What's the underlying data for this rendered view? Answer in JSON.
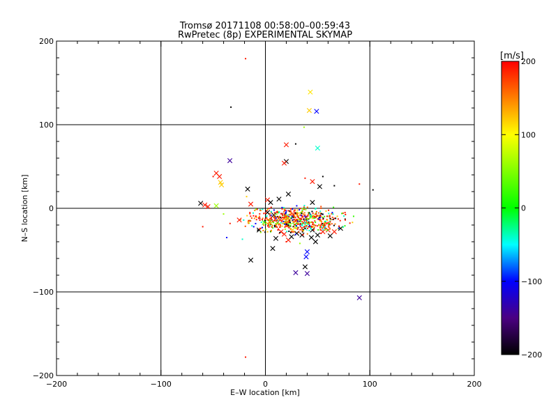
{
  "chart_data": {
    "type": "scatter",
    "title": "Tromsø 20171108 00:58:00–00:59:43",
    "subtitle": "RwPretec (8p) EXPERIMENTAL SKYMAP",
    "xlabel": "E–W location [km]",
    "ylabel": "N–S location [km]",
    "xlim": [
      -200,
      200
    ],
    "ylim": [
      -200,
      200
    ],
    "xticks": [
      "−200",
      "−100",
      "0",
      "100",
      "200"
    ],
    "yticks": [
      "−200",
      "−100",
      "0",
      "100",
      "200"
    ],
    "xtick_values": [
      -200,
      -100,
      0,
      100,
      200
    ],
    "ytick_values": [
      -200,
      -100,
      0,
      100,
      200
    ],
    "grid": true,
    "colorbar": {
      "unit": "[m/s]",
      "range": [
        -200,
        200
      ],
      "tick_labels": [
        "200",
        "100",
        "0",
        "−100",
        "−200"
      ],
      "tick_values": [
        200,
        100,
        0,
        -100,
        -200
      ]
    },
    "series": [
      {
        "name": "x-markers",
        "marker": "x",
        "points": [
          [
            43,
            139,
            110
          ],
          [
            42,
            117,
            120
          ],
          [
            49,
            116,
            -100
          ],
          [
            50,
            72,
            -40
          ],
          [
            20,
            76,
            190
          ],
          [
            20,
            56,
            -200
          ],
          [
            18,
            54,
            190
          ],
          [
            -34,
            57,
            -140
          ],
          [
            -47,
            42,
            190
          ],
          [
            -44,
            38,
            190
          ],
          [
            -43,
            31,
            120
          ],
          [
            -42,
            28,
            120
          ],
          [
            -17,
            23,
            -200
          ],
          [
            -62,
            6,
            -200
          ],
          [
            -58,
            4,
            190
          ],
          [
            -55,
            2,
            190
          ],
          [
            -47,
            3,
            60
          ],
          [
            -14,
            5,
            190
          ],
          [
            2,
            10,
            190
          ],
          [
            5,
            7,
            -200
          ],
          [
            13,
            11,
            -200
          ],
          [
            45,
            7,
            -200
          ],
          [
            52,
            26,
            -200
          ],
          [
            45,
            32,
            190
          ],
          [
            22,
            17,
            -200
          ],
          [
            -25,
            -14,
            190
          ],
          [
            -6,
            -26,
            -200
          ],
          [
            7,
            -48,
            -200
          ],
          [
            -14,
            -62,
            -200
          ],
          [
            40,
            -52,
            -100
          ],
          [
            39,
            -58,
            -100
          ],
          [
            38,
            -70,
            -200
          ],
          [
            29,
            -77,
            -140
          ],
          [
            40,
            -78,
            -140
          ],
          [
            90,
            -107,
            -140
          ],
          [
            18,
            -31,
            190
          ],
          [
            22,
            -38,
            190
          ],
          [
            56,
            -22,
            190
          ],
          [
            60,
            -26,
            190
          ],
          [
            66,
            -28,
            190
          ],
          [
            72,
            -24,
            -200
          ],
          [
            62,
            -33,
            -200
          ],
          [
            50,
            -32,
            -200
          ],
          [
            55,
            -28,
            190
          ],
          [
            28,
            -20,
            20
          ],
          [
            30,
            -30,
            -200
          ],
          [
            35,
            -32,
            -200
          ],
          [
            44,
            -35,
            -200
          ],
          [
            48,
            -40,
            -200
          ],
          [
            38,
            -24,
            -40
          ],
          [
            20,
            -10,
            190
          ],
          [
            14,
            -14,
            190
          ],
          [
            2,
            -5,
            -200
          ],
          [
            8,
            -8,
            -200
          ],
          [
            26,
            -26,
            120
          ],
          [
            -1,
            -17,
            20
          ],
          [
            5,
            -18,
            60
          ],
          [
            35,
            -20,
            -40
          ],
          [
            45,
            -26,
            -200
          ],
          [
            15,
            -28,
            190
          ],
          [
            25,
            -34,
            -200
          ],
          [
            10,
            -36,
            -200
          ]
        ]
      },
      {
        "name": "dot-markers",
        "marker": "dot",
        "points": [
          [
            -33,
            121,
            -200
          ],
          [
            29,
            77,
            -200
          ],
          [
            37,
            97,
            60
          ],
          [
            38,
            36,
            190
          ],
          [
            55,
            38,
            -200
          ],
          [
            66,
            27,
            -200
          ],
          [
            90,
            29,
            190
          ],
          [
            103,
            22,
            -200
          ],
          [
            -50,
            38,
            190
          ],
          [
            -18,
            14,
            120
          ],
          [
            -60,
            -22,
            190
          ],
          [
            -37,
            -35,
            -100
          ],
          [
            -22,
            -37,
            -40
          ],
          [
            -19,
            179,
            190
          ],
          [
            -19,
            -178,
            190
          ],
          [
            5,
            -28,
            20
          ],
          [
            20,
            -40,
            190
          ],
          [
            33,
            -42,
            60
          ]
        ]
      }
    ],
    "cluster": {
      "name": "dense-cluster",
      "marker": "dot",
      "center": [
        30,
        -14
      ],
      "spread": [
        22,
        7
      ],
      "count": 620
    }
  }
}
